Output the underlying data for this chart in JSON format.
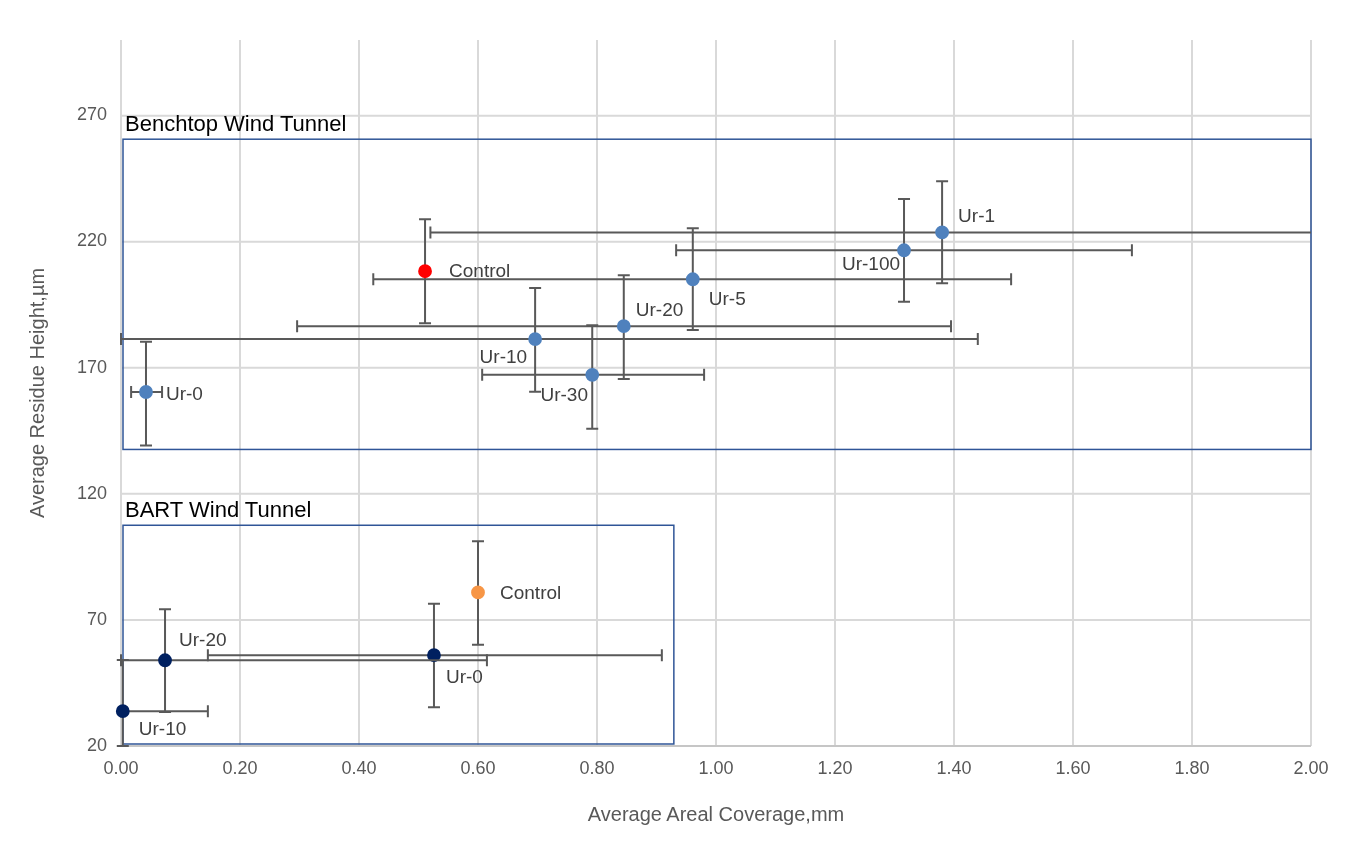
{
  "chart_data": {
    "type": "scatter",
    "xlabel": "Average Areal Coverage,mm",
    "ylabel": "Average Residue Height,µm",
    "xlim": [
      0,
      2
    ],
    "xticks": [
      {
        "value": 0,
        "label": "0.00"
      },
      {
        "value": 0.2,
        "label": "0.20"
      },
      {
        "value": 0.4,
        "label": "0.40"
      },
      {
        "value": 0.6,
        "label": "0.60"
      },
      {
        "value": 0.8,
        "label": "0.80"
      },
      {
        "value": 1,
        "label": "1.00"
      },
      {
        "value": 1.2,
        "label": "1.20"
      },
      {
        "value": 1.4,
        "label": "1.40"
      },
      {
        "value": 1.6,
        "label": "1.60"
      },
      {
        "value": 1.8,
        "label": "1.80"
      },
      {
        "value": 2,
        "label": "2.00"
      }
    ],
    "ylim": [
      20,
      300
    ],
    "yticks": [
      20,
      70,
      120,
      170,
      220,
      270
    ],
    "grid": true,
    "marker": "circle",
    "series": [
      {
        "color": "#4f81bd",
        "x": [
          1.38,
          1.316,
          0.961,
          0.845,
          0.696,
          0.792,
          0.042
        ],
        "values": [
          223.7,
          216.6,
          205.1,
          186.5,
          181.4,
          167.2,
          160.4
        ],
        "errors": [
          [
            203.5,
            244
          ],
          [
            196.2,
            236.9
          ],
          [
            185,
            225.3
          ],
          [
            165.6,
            206.7
          ],
          [
            160.5,
            201.6
          ],
          [
            145.8,
            186.9
          ],
          [
            139.2,
            180.3
          ]
        ],
        "xerrors": [
          [
            0.52,
            2
          ],
          [
            0.933,
            1.699
          ],
          [
            0.424,
            1.496
          ],
          [
            0.296,
            1.395
          ],
          [
            0,
            1.44
          ],
          [
            0.607,
            0.98
          ],
          [
            0.017,
            0.069
          ]
        ]
      },
      {
        "color": "#ff0000",
        "x": [
          0.511
        ],
        "values": [
          208.3
        ],
        "errors": [
          [
            187.7,
            228.9
          ]
        ],
        "xerrors": [
          null
        ]
      },
      {
        "color": "#002060",
        "x": [
          0.526,
          0.074,
          0.003
        ],
        "values": [
          56,
          54,
          33.8
        ],
        "errors": [
          [
            35.4,
            76.4
          ],
          [
            33.5,
            74.2
          ],
          [
            20,
            54.1
          ]
        ],
        "xerrors": [
          [
            0.146,
            0.909
          ],
          [
            0,
            0.615
          ],
          [
            0,
            0.146
          ]
        ]
      },
      {
        "color": "#f79646",
        "x": [
          0.6
        ],
        "values": [
          80.9
        ],
        "errors": [
          [
            60.2,
            101.2
          ]
        ],
        "xerrors": [
          null
        ]
      }
    ],
    "annotations": [
      "Benchtop Wind Tunnel",
      {
        "text": "Ur-1",
        "x": 1.38,
        "y": 223.7
      },
      {
        "text": "Ur-100",
        "x": 1.316,
        "y": 216.6
      },
      {
        "text": "Ur-5",
        "x": 0.961,
        "y": 205.1
      },
      {
        "text": "Ur-20",
        "x": 0.845,
        "y": 186.5
      },
      {
        "text": "Ur-10",
        "x": 0.696,
        "y": 181.4
      },
      {
        "text": "Ur-30",
        "x": 0.792,
        "y": 167.2
      },
      {
        "text": "Ur-0",
        "x": 0.042,
        "y": 160.4
      },
      {
        "text": "Control",
        "x": 0.511,
        "y": 208.3
      },
      "BART Wind Tunnel",
      {
        "text": "Ur-0",
        "x": 0.526,
        "y": 56
      },
      {
        "text": "Ur-20",
        "x": 0.074,
        "y": 54
      },
      {
        "text": "Ur-10",
        "x": 0.003,
        "y": 33.8
      },
      {
        "text": "Control",
        "x": 0.6,
        "y": 80.9
      }
    ]
  }
}
